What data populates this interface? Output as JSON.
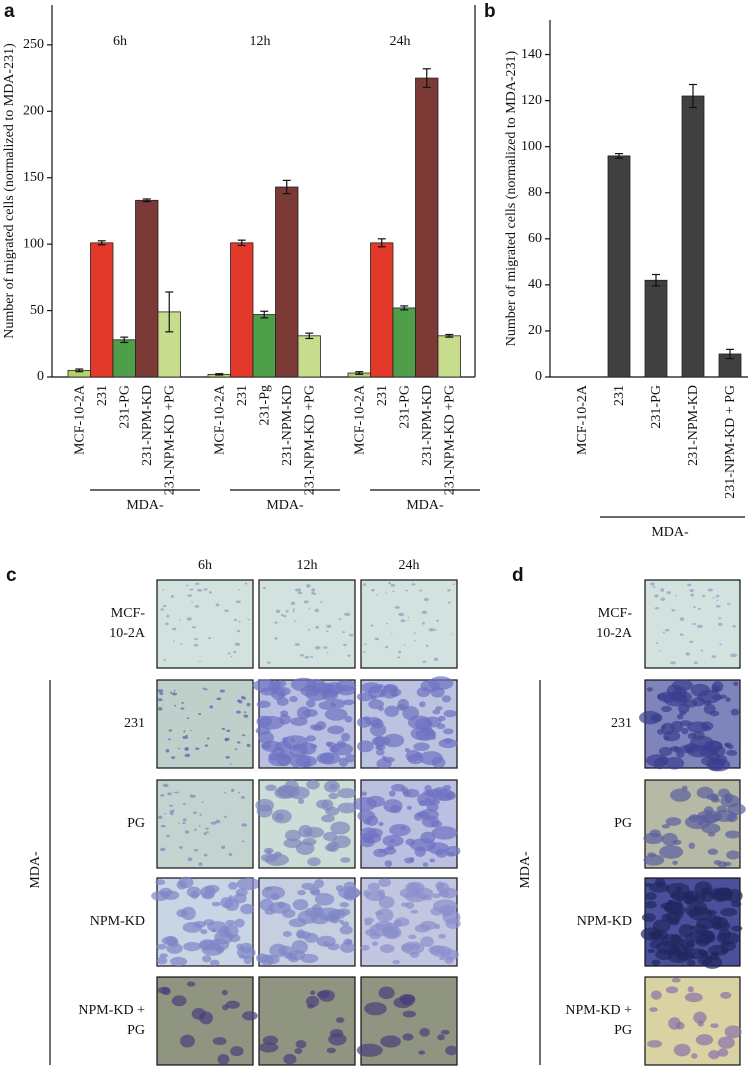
{
  "chart_data": [
    {
      "type": "grouped_bar",
      "panel_label": "a",
      "ylabel": "Number of migrated cells (normalized to MDA-231)",
      "ylim": [
        0,
        280
      ],
      "yticks": [
        0,
        50,
        100,
        150,
        200,
        250
      ],
      "colors": [
        "#b5d36b",
        "#e2392a",
        "#4f9e4a",
        "#7b3a35",
        "#c7dc8c"
      ],
      "groups": [
        {
          "title": "6h",
          "categories": [
            "MCF-10-2A",
            "231",
            "231-PG",
            "231-NPM-KD",
            "231-NPM-KD +PG"
          ],
          "values": [
            5,
            101,
            28,
            133,
            49
          ],
          "errors": [
            1,
            1.5,
            2,
            1,
            15
          ],
          "group_label": "MDA-"
        },
        {
          "title": "12h",
          "categories": [
            "MCF-10-2A",
            "231",
            "231-Pg",
            "231-NPM-KD",
            "231-NPM-KD +PG"
          ],
          "values": [
            2,
            101,
            47,
            143,
            31
          ],
          "errors": [
            0.5,
            2,
            2.5,
            5,
            2
          ],
          "group_label": "MDA-"
        },
        {
          "title": "24h",
          "categories": [
            "MCF-10-2A",
            "231",
            "231-PG",
            "231-NPM-KD",
            "231-NPM-KD +PG"
          ],
          "values": [
            3,
            101,
            52,
            225,
            31
          ],
          "errors": [
            1,
            3,
            1.5,
            7,
            1
          ],
          "group_label": "MDA-"
        }
      ]
    },
    {
      "type": "bar",
      "panel_label": "b",
      "ylabel": "Number of migrated cells (normalized to MDA-231)",
      "ylim": [
        0,
        155
      ],
      "yticks": [
        0,
        20,
        40,
        60,
        80,
        100,
        120,
        140
      ],
      "color": "#404040",
      "categories": [
        "MCF-10-2A",
        "231",
        "231-PG",
        "231-NPM-KD",
        "231-NPM-KD + PG"
      ],
      "values": [
        0,
        96,
        42,
        122,
        10
      ],
      "errors": [
        null,
        1,
        2.5,
        5,
        2
      ],
      "group_label": "MDA-"
    }
  ],
  "panels": {
    "c": {
      "label": "c",
      "columns": [
        "6h",
        "12h",
        "24h"
      ],
      "rows": [
        [
          "MCF-",
          "10-2A"
        ],
        [
          "231"
        ],
        [
          "PG"
        ],
        [
          "NPM-KD"
        ],
        [
          "NPM-KD +",
          "PG"
        ]
      ],
      "group_label": "MDA-"
    },
    "d": {
      "label": "d",
      "rows": [
        [
          "MCF-",
          "10-2A"
        ],
        [
          "231"
        ],
        [
          "PG"
        ],
        [
          "NPM-KD"
        ],
        [
          "NPM-KD +",
          "PG"
        ]
      ],
      "group_label": "MDA-"
    }
  }
}
